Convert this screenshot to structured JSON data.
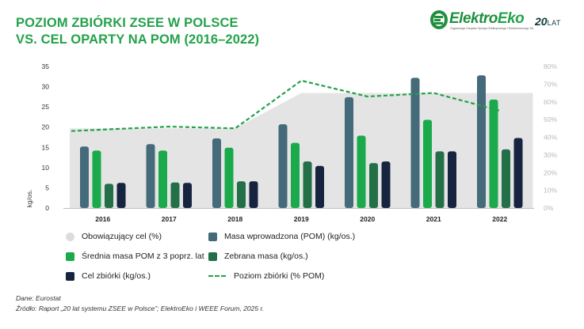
{
  "header": {
    "title_line1": "POZIOM ZBIÓRKI ZSEE W POLSCE",
    "title_line2": "VS. CEL OPARTY NA POM (2016–2022)"
  },
  "logo": {
    "name_part1": "Elektro",
    "name_part2": "Eko",
    "tagline": "Organizacja Odzysku Sprzętu Elektrycznego i Elektronicznego SA",
    "years_number": "20",
    "years_label": "LAT"
  },
  "colors": {
    "brand_green": "#23a24a",
    "target_area": "#e4e4e4",
    "masa_pom": "#456a79",
    "srednia_pom": "#1aaa4b",
    "zebrana": "#236f47",
    "cel": "#16243f"
  },
  "chart_data": {
    "type": "bar",
    "categories": [
      "2016",
      "2017",
      "2018",
      "2019",
      "2020",
      "2021",
      "2022"
    ],
    "y_left": {
      "label": "kg/os.",
      "min": 0,
      "max": 35,
      "ticks": [
        "0",
        "5",
        "10",
        "15",
        "20",
        "25",
        "30",
        "35"
      ]
    },
    "y_right": {
      "min": 0,
      "max": 80,
      "ticks": [
        "0%",
        "10%",
        "20%",
        "30%",
        "40%",
        "50%",
        "60%",
        "70%",
        "80%"
      ]
    },
    "series": [
      {
        "name": "Masa wprowadzona (POM) (kg/os.)",
        "kind": "bar",
        "values": [
          15.2,
          15.8,
          17.2,
          20.7,
          27.4,
          32.2,
          32.8
        ]
      },
      {
        "name": "Średnia masa POM z 3 poprz. lat",
        "kind": "bar",
        "values": [
          14.2,
          14.2,
          14.9,
          16.1,
          17.9,
          21.8,
          26.8
        ]
      },
      {
        "name": "Zebrana masa (kg/os.)",
        "kind": "bar",
        "values": [
          6.0,
          6.3,
          6.6,
          11.5,
          11.1,
          14.0,
          14.5
        ]
      },
      {
        "name": "Cel zbiórki (kg/os.)",
        "kind": "bar",
        "values": [
          6.2,
          6.2,
          6.6,
          10.4,
          11.5,
          14.0,
          17.3
        ]
      },
      {
        "name": "Obowiązujący cel (%)",
        "kind": "area",
        "axis": "right",
        "values": [
          45,
          45,
          45,
          65,
          65,
          65,
          65
        ]
      },
      {
        "name": "Poziom zbiórki (% POM)",
        "kind": "line",
        "axis": "right",
        "values": [
          43.5,
          46,
          45,
          72,
          63,
          65,
          55
        ]
      }
    ],
    "legend_position": "bottom",
    "grid": false
  },
  "legend": [
    {
      "label": "Obowiązujący cel (%)"
    },
    {
      "label": "Masa wprowadzona (POM) (kg/os.)"
    },
    {
      "label": "Średnia masa POM z 3 poprz. lat"
    },
    {
      "label": "Zebrana masa (kg/os.)"
    },
    {
      "label": "Cel zbiórki (kg/os.)"
    },
    {
      "label": "Poziom zbiórki (% POM)"
    }
  ],
  "footer": {
    "source": "Dane: Eurostat",
    "citation": "Źródło: Raport „20 lat systemu ZSEE w Polsce”; ElektroEko i WEEE Forum, 2025 r."
  }
}
